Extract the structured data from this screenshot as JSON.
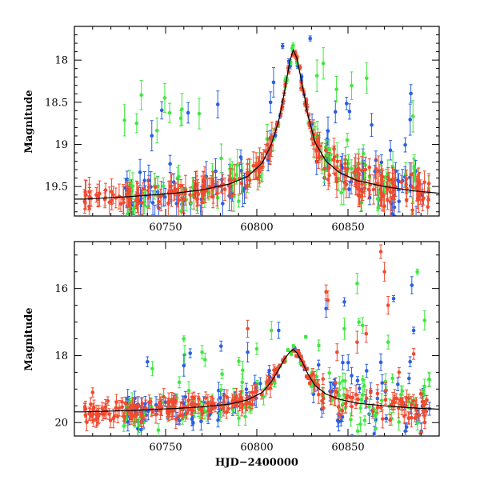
{
  "chart_data": [
    {
      "type": "scatter",
      "xlabel": "",
      "ylabel": "Magnitude",
      "xlim": [
        60700,
        60900
      ],
      "ylim": [
        19.85,
        17.6
      ],
      "y_inverted": true,
      "xticks": [
        60750,
        60800,
        60850
      ],
      "xtick_labels": [
        "60750",
        "60800",
        "60850"
      ],
      "yticks": [
        18,
        18.5,
        19,
        19.5
      ],
      "ytick_labels": [
        "18",
        "18.5",
        "19",
        "19.5"
      ],
      "error_bars": true,
      "grid": false,
      "series_colors": [
        "#2b5fe0",
        "#3ee83e",
        "#f04a30"
      ],
      "model_curve_color": "#000000",
      "model": {
        "x": [
          60705,
          60730,
          60755,
          60770,
          60785,
          60795,
          60803,
          60808,
          60812,
          60815,
          60818,
          60820,
          60822,
          60825,
          60828,
          60832,
          60838,
          60845,
          60855,
          60870,
          60885,
          60900
        ],
        "y": [
          19.65,
          19.62,
          19.58,
          19.54,
          19.47,
          19.38,
          19.22,
          19.0,
          18.72,
          18.4,
          18.02,
          17.88,
          17.98,
          18.3,
          18.65,
          18.98,
          19.2,
          19.33,
          19.43,
          19.5,
          19.55,
          19.58
        ]
      }
    },
    {
      "type": "scatter",
      "xlabel": "HJD−2400000",
      "ylabel": "Magnitude",
      "xlim": [
        60700,
        60900
      ],
      "ylim": [
        20.4,
        14.6
      ],
      "y_inverted": true,
      "xticks": [
        60750,
        60800,
        60850
      ],
      "xtick_labels": [
        "60750",
        "60800",
        "60850"
      ],
      "yticks": [
        16,
        18,
        20
      ],
      "ytick_labels": [
        "16",
        "18",
        "20"
      ],
      "error_bars": true,
      "grid": false,
      "series_colors": [
        "#2b5fe0",
        "#3ee83e",
        "#f04a30"
      ],
      "model_curve_color": "#000000",
      "model": {
        "x": [
          60705,
          60730,
          60755,
          60770,
          60785,
          60795,
          60803,
          60808,
          60812,
          60815,
          60818,
          60820,
          60822,
          60825,
          60828,
          60832,
          60838,
          60845,
          60855,
          60870,
          60885,
          60900
        ],
        "y": [
          19.68,
          19.64,
          19.58,
          19.53,
          19.45,
          19.32,
          19.1,
          18.78,
          18.42,
          18.12,
          17.9,
          17.82,
          17.92,
          18.2,
          18.55,
          18.9,
          19.15,
          19.3,
          19.42,
          19.5,
          19.56,
          19.6
        ]
      },
      "outliers": {
        "blue": [
          [
            60760,
            18.3
          ],
          [
            60795,
            17.9
          ],
          [
            60812,
            17.25
          ],
          [
            60838,
            16.6
          ],
          [
            60848,
            16.4
          ],
          [
            60875,
            16.3
          ],
          [
            60885,
            15.9
          ],
          [
            60886,
            17.25
          ],
          [
            60868,
            18.2
          ],
          [
            60852,
            18.6
          ]
        ],
        "green": [
          [
            60760,
            17.5
          ],
          [
            60770,
            17.9
          ],
          [
            60808,
            17.25
          ],
          [
            60834,
            17.7
          ],
          [
            60848,
            17.2
          ],
          [
            60855,
            15.85
          ],
          [
            60856,
            17.0
          ],
          [
            60858,
            17.1
          ],
          [
            60872,
            17.6
          ],
          [
            60888,
            15.5
          ],
          [
            60892,
            16.95
          ],
          [
            60800,
            17.8
          ]
        ],
        "red": [
          [
            60710,
            19.1
          ],
          [
            60838,
            16.1
          ],
          [
            60839,
            16.35
          ],
          [
            60844,
            17.9
          ],
          [
            60855,
            17.6
          ],
          [
            60860,
            17.35
          ],
          [
            60868,
            14.9
          ],
          [
            60870,
            15.5
          ],
          [
            60872,
            16.5
          ],
          [
            60878,
            18.5
          ],
          [
            60886,
            17.95
          ],
          [
            60795,
            17.2
          ]
        ]
      }
    }
  ]
}
